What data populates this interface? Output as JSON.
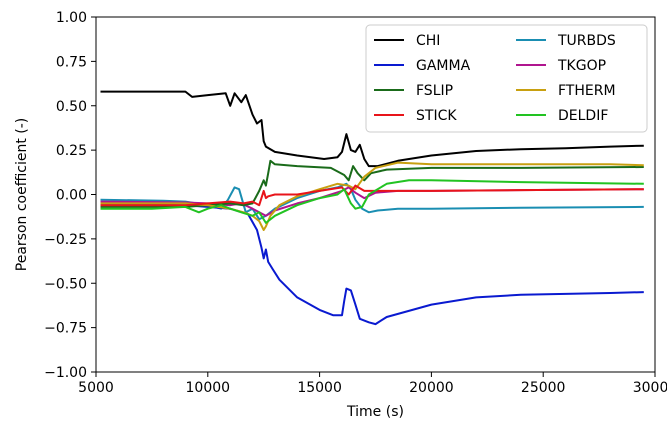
{
  "chart_data": {
    "type": "line",
    "title": "",
    "xlabel": "Time (s)",
    "ylabel": "Pearson coefficient (-)",
    "xlim": [
      5000,
      30000
    ],
    "ylim": [
      -1.0,
      1.0
    ],
    "xticks": [
      5000,
      10000,
      15000,
      20000,
      25000,
      30000
    ],
    "xtick_labels": [
      "5000",
      "10000",
      "15000",
      "20000",
      "25000",
      "30000"
    ],
    "yticks": [
      -1.0,
      -0.75,
      -0.5,
      -0.25,
      0.0,
      0.25,
      0.5,
      0.75,
      1.0
    ],
    "ytick_labels": [
      "−1.00",
      "−0.75",
      "−0.50",
      "−0.25",
      "0.00",
      "0.25",
      "0.50",
      "0.75",
      "1.00"
    ],
    "grid": false,
    "legend": {
      "placement": "top-right",
      "columns": 2
    },
    "series": [
      {
        "name": "CHI",
        "color": "#000000",
        "x": [
          5200,
          9000,
          9300,
          10000,
          10800,
          11000,
          11200,
          11500,
          11700,
          12000,
          12200,
          12400,
          12500,
          12600,
          13000,
          14000,
          15200,
          15800,
          16000,
          16200,
          16400,
          16600,
          16800,
          17000,
          17200,
          17600,
          18500,
          20000,
          22000,
          24000,
          26000,
          28000,
          29500
        ],
        "y": [
          0.58,
          0.58,
          0.55,
          0.56,
          0.57,
          0.5,
          0.57,
          0.52,
          0.56,
          0.45,
          0.4,
          0.42,
          0.3,
          0.27,
          0.24,
          0.22,
          0.2,
          0.21,
          0.24,
          0.34,
          0.25,
          0.24,
          0.28,
          0.2,
          0.16,
          0.16,
          0.19,
          0.22,
          0.245,
          0.255,
          0.26,
          0.27,
          0.275
        ]
      },
      {
        "name": "TURBDS",
        "color": "#1a8eb2",
        "x": [
          5200,
          8000,
          9000,
          10000,
          10600,
          10900,
          11200,
          11400,
          11700,
          12000,
          12300,
          12600,
          13000,
          14000,
          15000,
          15800,
          16200,
          16400,
          16600,
          16900,
          17200,
          17600,
          18500,
          20000,
          24000,
          29500
        ],
        "y": [
          -0.03,
          -0.035,
          -0.04,
          -0.06,
          -0.08,
          -0.03,
          0.04,
          0.03,
          -0.1,
          -0.08,
          -0.14,
          -0.12,
          -0.08,
          -0.02,
          0.02,
          0.04,
          0.06,
          0.03,
          -0.03,
          -0.08,
          -0.1,
          -0.09,
          -0.08,
          -0.08,
          -0.075,
          -0.07
        ]
      },
      {
        "name": "GAMMA",
        "color": "#0a1ad0",
        "x": [
          5200,
          9000,
          10000,
          11000,
          11800,
          12200,
          12400,
          12500,
          12600,
          12700,
          12900,
          13200,
          14000,
          15000,
          15600,
          16000,
          16100,
          16200,
          16400,
          16600,
          16800,
          17200,
          17500,
          18000,
          20000,
          22000,
          24000,
          26000,
          28000,
          29500
        ],
        "y": [
          -0.05,
          -0.06,
          -0.07,
          -0.08,
          -0.11,
          -0.2,
          -0.3,
          -0.36,
          -0.31,
          -0.38,
          -0.42,
          -0.48,
          -0.58,
          -0.65,
          -0.68,
          -0.68,
          -0.6,
          -0.53,
          -0.54,
          -0.62,
          -0.7,
          -0.72,
          -0.73,
          -0.69,
          -0.62,
          -0.58,
          -0.565,
          -0.56,
          -0.555,
          -0.55
        ]
      },
      {
        "name": "TKGOP",
        "color": "#b0158f",
        "x": [
          5200,
          9000,
          10000,
          11000,
          11500,
          12000,
          12300,
          12600,
          13000,
          14000,
          15000,
          16000,
          16300,
          16600,
          17000,
          17500,
          18500,
          20000,
          24000,
          29500
        ],
        "y": [
          -0.04,
          -0.045,
          -0.05,
          -0.06,
          -0.05,
          -0.08,
          -0.1,
          -0.12,
          -0.09,
          -0.05,
          -0.02,
          0.02,
          0.04,
          0.01,
          -0.02,
          0.01,
          0.02,
          0.02,
          0.025,
          0.03
        ]
      },
      {
        "name": "FSLIP",
        "color": "#1a6b1a",
        "x": [
          5200,
          9000,
          10000,
          11000,
          11600,
          12000,
          12300,
          12500,
          12600,
          12700,
          12800,
          13000,
          14000,
          15500,
          16100,
          16300,
          16500,
          16700,
          17000,
          17300,
          18000,
          20000,
          24000,
          29500
        ],
        "y": [
          -0.07,
          -0.07,
          -0.06,
          -0.05,
          -0.06,
          -0.05,
          0.02,
          0.08,
          0.05,
          0.12,
          0.19,
          0.17,
          0.16,
          0.15,
          0.11,
          0.08,
          0.16,
          0.12,
          0.08,
          0.12,
          0.14,
          0.15,
          0.15,
          0.155
        ]
      },
      {
        "name": "FTHERM",
        "color": "#c8a010",
        "x": [
          5200,
          9000,
          10000,
          11000,
          11600,
          12000,
          12300,
          12500,
          12600,
          12800,
          13200,
          14000,
          15000,
          15800,
          16300,
          16600,
          17000,
          17500,
          18500,
          20000,
          22000,
          24000,
          26000,
          28000,
          29500
        ],
        "y": [
          -0.05,
          -0.05,
          -0.06,
          -0.08,
          -0.1,
          -0.12,
          -0.15,
          -0.2,
          -0.18,
          -0.12,
          -0.06,
          -0.01,
          0.03,
          0.06,
          0.05,
          0.03,
          0.1,
          0.15,
          0.18,
          0.17,
          0.17,
          0.17,
          0.17,
          0.17,
          0.165
        ]
      },
      {
        "name": "STICK",
        "color": "#e8141a",
        "x": [
          5200,
          9000,
          10000,
          11000,
          11600,
          12000,
          12300,
          12500,
          12600,
          12700,
          13000,
          14000,
          15000,
          16000,
          16300,
          16600,
          17000,
          17500,
          18500,
          20000,
          24000,
          29500
        ],
        "y": [
          -0.06,
          -0.06,
          -0.05,
          -0.04,
          -0.05,
          -0.04,
          -0.06,
          0.02,
          -0.02,
          -0.01,
          0.0,
          0.0,
          0.02,
          0.04,
          0.0,
          0.05,
          0.02,
          0.02,
          0.02,
          0.02,
          0.025,
          0.03
        ]
      },
      {
        "name": "DELDIF",
        "color": "#22c322",
        "x": [
          5200,
          7500,
          9000,
          9600,
          10000,
          10600,
          11000,
          11500,
          12000,
          12300,
          12600,
          13000,
          14000,
          15000,
          15800,
          16100,
          16400,
          16600,
          16900,
          17200,
          18000,
          19000,
          20000,
          24000,
          29500
        ],
        "y": [
          -0.08,
          -0.08,
          -0.07,
          -0.1,
          -0.08,
          -0.06,
          -0.08,
          -0.1,
          -0.12,
          -0.1,
          -0.16,
          -0.12,
          -0.06,
          -0.02,
          0.0,
          0.03,
          -0.05,
          -0.08,
          -0.07,
          0.0,
          0.06,
          0.08,
          0.08,
          0.07,
          0.06
        ]
      }
    ]
  }
}
